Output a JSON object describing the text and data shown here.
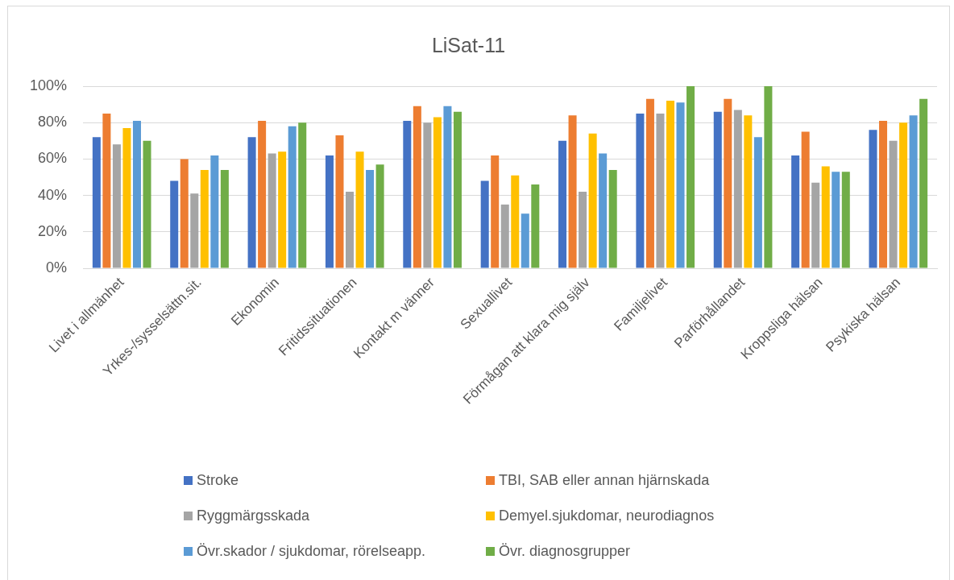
{
  "chart_data": {
    "type": "bar",
    "title": "LiSat-11",
    "categories": [
      "Livet i allmänhet",
      "Yrkes-/sysselsättn.sit.",
      "Ekonomin",
      "Fritidssituationen",
      "Kontakt m vänner",
      "Sexuallivet",
      "Förmågan att klara mig själv",
      "Familjelivet",
      "Parförhållandet",
      "Kroppsliga hälsan",
      "Psykiska hälsan"
    ],
    "series": [
      {
        "name": "Stroke",
        "color": "#4472c4",
        "values": [
          72,
          48,
          72,
          62,
          81,
          48,
          70,
          85,
          86,
          62,
          76
        ]
      },
      {
        "name": "TBI, SAB eller annan hjärnskada",
        "color": "#ed7d31",
        "values": [
          85,
          60,
          81,
          73,
          89,
          62,
          84,
          93,
          93,
          75,
          81
        ]
      },
      {
        "name": "Ryggmärgsskada",
        "color": "#a5a5a5",
        "values": [
          68,
          41,
          63,
          42,
          80,
          35,
          42,
          85,
          87,
          47,
          70
        ]
      },
      {
        "name": "Demyel.sjukdomar, neurodiagnos",
        "color": "#ffc000",
        "values": [
          77,
          54,
          64,
          64,
          83,
          51,
          74,
          92,
          84,
          56,
          80
        ]
      },
      {
        "name": "Övr.skador / sjukdomar, rörelseapp.",
        "color": "#5b9bd5",
        "values": [
          81,
          62,
          78,
          54,
          89,
          30,
          63,
          91,
          72,
          53,
          84
        ]
      },
      {
        "name": "Övr. diagnosgrupper",
        "color": "#70ad47",
        "values": [
          70,
          54,
          80,
          57,
          86,
          46,
          54,
          100,
          100,
          53,
          93
        ]
      }
    ],
    "ylim": [
      0,
      100
    ],
    "yticks": [
      {
        "value": 0,
        "label": "0%"
      },
      {
        "value": 20,
        "label": "20%"
      },
      {
        "value": 40,
        "label": "40%"
      },
      {
        "value": 60,
        "label": "60%"
      },
      {
        "value": 80,
        "label": "80%"
      },
      {
        "value": 100,
        "label": "100%"
      }
    ],
    "grid": "y",
    "legend": "bottom"
  }
}
